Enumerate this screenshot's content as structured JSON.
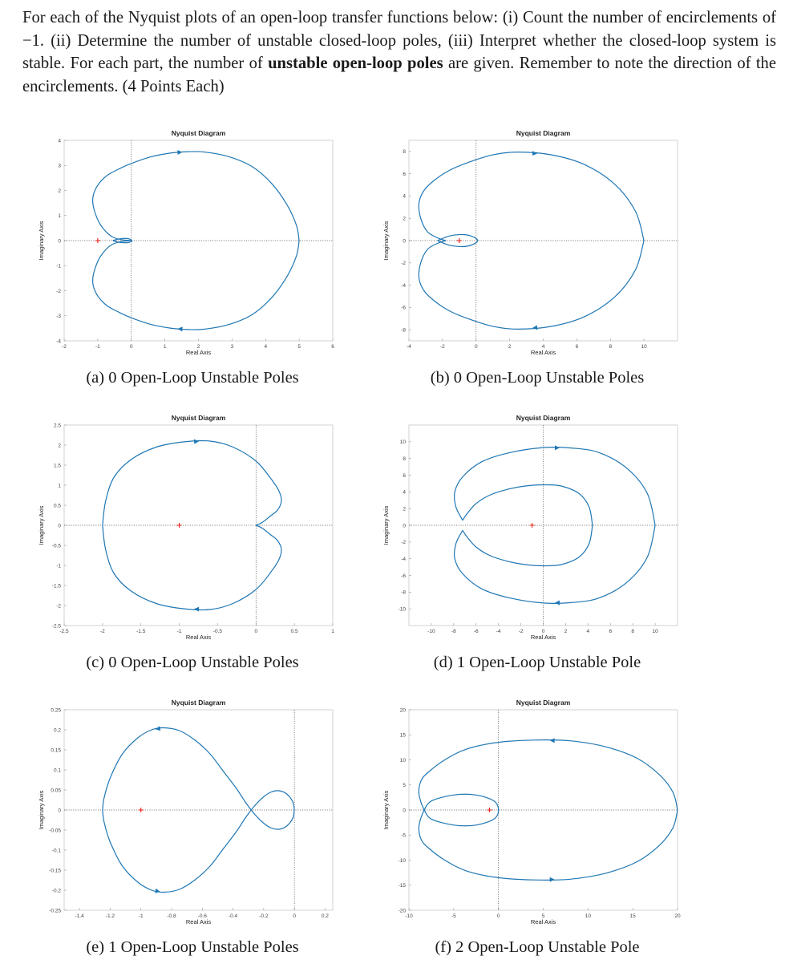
{
  "intro": {
    "part1": "For each of the Nyquist plots of an open-loop transfer functions below: (i) Count the number of encirclements of −1. (ii) Determine the number of unstable closed-loop poles, (iii) Interpret whether the closed-loop system is stable. For each part, the number of ",
    "bold": "unstable open-loop poles",
    "part2": " are given. Remember to note the direction of the encirclements. (4 Points Each)"
  },
  "colors": {
    "curve": "#1f77b4",
    "critical_point": "#e8251f",
    "axis": "#333333"
  },
  "chart_data": [
    {
      "id": "a",
      "type": "line",
      "title": "Nyquist Diagram",
      "xlabel": "Real Axis",
      "ylabel": "Imaginary Axis",
      "xlim": [
        -2,
        6
      ],
      "ylim": [
        -4,
        4
      ],
      "xticks": [
        "-2",
        "-1",
        "0",
        "1",
        "2",
        "3",
        "4",
        "5",
        "6"
      ],
      "yticks": [
        "-4",
        "-3",
        "-2",
        "-1",
        "0",
        "1",
        "2",
        "3",
        "4"
      ],
      "critical_point": [
        -1,
        0
      ],
      "x": [
        0.03,
        -0.3,
        -0.55,
        -0.75,
        -0.95,
        -1.1,
        -1.15,
        -1.1,
        -0.95,
        -0.7,
        -0.35,
        0.0,
        0.6,
        1.2,
        1.7,
        2.2,
        2.9,
        3.6,
        4.2,
        4.65,
        4.92,
        5.0
      ],
      "y": [
        0.0,
        0.04,
        0.14,
        0.35,
        0.7,
        1.2,
        1.6,
        1.95,
        2.3,
        2.62,
        2.87,
        3.08,
        3.35,
        3.5,
        3.55,
        3.53,
        3.35,
        2.95,
        2.25,
        1.4,
        0.6,
        0.0
      ],
      "loop_x": [
        -0.55,
        -0.35,
        -0.1,
        0.02,
        -0.1,
        -0.35,
        -0.55
      ],
      "loop_y": [
        0.0,
        0.07,
        0.08,
        0.0,
        -0.08,
        -0.07,
        0.0
      ],
      "arrows": [
        "upper right: counter-clockwise",
        "lower: leftward"
      ],
      "caption": "(a) 0 Open-Loop Unstable Poles"
    },
    {
      "id": "b",
      "type": "line",
      "title": "Nyquist Diagram",
      "xlabel": "Real Axis",
      "ylabel": "Imaginary Axis",
      "xlim": [
        -4,
        12
      ],
      "ylim": [
        -9,
        9
      ],
      "xticks": [
        "-4",
        "-2",
        "0",
        "2",
        "4",
        "6",
        "8",
        "10"
      ],
      "yticks": [
        "-8",
        "-6",
        "-4",
        "-2",
        "0",
        "2",
        "4",
        "6",
        "8"
      ],
      "critical_point": [
        -1,
        0
      ],
      "x": [
        -1.8,
        -2.3,
        -2.9,
        -3.3,
        -3.4,
        -3.1,
        -2.5,
        -1.6,
        -0.5,
        1.0,
        2.5,
        4.5,
        6.5,
        8.3,
        9.5,
        10.0
      ],
      "y": [
        0.0,
        0.25,
        0.8,
        2.0,
        3.4,
        4.5,
        5.4,
        6.3,
        7.0,
        7.7,
        7.95,
        7.7,
        6.8,
        5.0,
        2.6,
        0.0
      ],
      "loop_x": [
        -2.3,
        -1.5,
        -0.5,
        0.1,
        -0.5,
        -1.5,
        -2.3
      ],
      "loop_y": [
        0.0,
        0.45,
        0.5,
        0.0,
        -0.5,
        -0.45,
        0.0
      ],
      "arrows": [
        "top: rightward",
        "bottom: leftward"
      ],
      "caption": "(b) 0 Open-Loop Unstable Poles"
    },
    {
      "id": "c",
      "type": "line",
      "title": "Nyquist Diagram",
      "xlabel": "Real Axis",
      "ylabel": "Imaginary Axis",
      "xlim": [
        -2.5,
        1
      ],
      "ylim": [
        -2.5,
        2.5
      ],
      "xticks": [
        "-2.5",
        "-2",
        "-1.5",
        "-1",
        "-0.5",
        "0",
        "0.5",
        "1"
      ],
      "yticks": [
        "-2.5",
        "-2",
        "-1.5",
        "-1",
        "-0.5",
        "0",
        "0.5",
        "1",
        "1.5",
        "2",
        "2.5"
      ],
      "critical_point": [
        -1,
        0
      ],
      "x": [
        0.0,
        0.08,
        0.18,
        0.28,
        0.33,
        0.3,
        0.2,
        0.0,
        -0.3,
        -0.6,
        -0.95,
        -1.3,
        -1.62,
        -1.85,
        -1.96,
        -2.0
      ],
      "y": [
        0.0,
        0.07,
        0.22,
        0.38,
        0.6,
        0.85,
        1.15,
        1.6,
        1.95,
        2.1,
        2.08,
        1.95,
        1.65,
        1.2,
        0.6,
        0.0
      ],
      "arrows": [
        "top: rightward",
        "bottom: leftward"
      ],
      "caption": "(c) 0 Open-Loop Unstable Poles"
    },
    {
      "id": "d",
      "type": "line",
      "title": "Nyquist Diagram",
      "xlabel": "Real Axis",
      "ylabel": "Imaginary Axis",
      "xlim": [
        -12,
        12
      ],
      "ylim": [
        -12,
        12
      ],
      "xticks": [
        "-10",
        "-8",
        "-6",
        "-4",
        "-2",
        "0",
        "2",
        "4",
        "6",
        "8",
        "10"
      ],
      "yticks": [
        "-10",
        "-8",
        "-6",
        "-4",
        "-2",
        "0",
        "2",
        "4",
        "6",
        "8",
        "10"
      ],
      "critical_point": [
        -1,
        0
      ],
      "outer_x": [
        -7.2,
        -7.8,
        -7.9,
        -7.2,
        -5.5,
        -3.0,
        0.0,
        2.5,
        5.0,
        7.5,
        9.3,
        10.0
      ],
      "outer_y": [
        0.6,
        2.2,
        4.0,
        5.8,
        7.6,
        8.7,
        9.3,
        9.25,
        8.7,
        6.8,
        3.8,
        0.0
      ],
      "inner_x": [
        -7.2,
        -6.8,
        -6.0,
        -4.8,
        -3.2,
        -1.6,
        0.0,
        1.6,
        3.2,
        4.1,
        4.4
      ],
      "inner_y": [
        0.6,
        1.4,
        2.6,
        3.6,
        4.3,
        4.7,
        4.85,
        4.7,
        3.8,
        2.2,
        0.0
      ],
      "arrows": [
        "top: rightward",
        "bottom: leftward"
      ],
      "caption": "(d) 1 Open-Loop Unstable Pole"
    },
    {
      "id": "e",
      "type": "line",
      "title": "Nyquist Diagram",
      "xlabel": "Real Axis",
      "ylabel": "Imaginary Axis",
      "xlim": [
        -1.5,
        0.25
      ],
      "ylim": [
        -0.25,
        0.25
      ],
      "xticks": [
        "-1.4",
        "-1.2",
        "-1",
        "-0.8",
        "-0.6",
        "-0.4",
        "-0.2",
        "0",
        "0.2"
      ],
      "yticks": [
        "-0.25",
        "-0.2",
        "-0.15",
        "-0.1",
        "-0.05",
        "0",
        "0.05",
        "0.1",
        "0.15",
        "0.2",
        "0.25"
      ],
      "critical_point": [
        -1,
        0
      ],
      "x": [
        0.0,
        -0.01,
        -0.05,
        -0.1,
        -0.15,
        -0.2,
        -0.26,
        -0.32,
        -0.38,
        -0.46,
        -0.55,
        -0.65,
        -0.75,
        -0.85,
        -0.93,
        -1.02,
        -1.12,
        -1.2,
        -1.24,
        -1.25
      ],
      "y": [
        0.0,
        0.02,
        0.04,
        0.048,
        0.045,
        0.033,
        0.01,
        -0.02,
        -0.055,
        -0.095,
        -0.14,
        -0.175,
        -0.198,
        -0.205,
        -0.2,
        -0.18,
        -0.14,
        -0.08,
        -0.03,
        0.0
      ],
      "arrows": [
        "top: leftward",
        "bottom: rightward"
      ],
      "caption": "(e) 1 Open-Loop Unstable Poles"
    },
    {
      "id": "f",
      "type": "line",
      "title": "Nyquist Diagram",
      "xlabel": "Real Axis",
      "ylabel": "Imaginary Axis",
      "xlim": [
        -10,
        20
      ],
      "ylim": [
        -20,
        20
      ],
      "xticks": [
        "-10",
        "-5",
        "0",
        "5",
        "10",
        "15",
        "20"
      ],
      "yticks": [
        "-20",
        "-15",
        "-10",
        "-5",
        "0",
        "5",
        "10",
        "15",
        "20"
      ],
      "critical_point": [
        -1,
        0
      ],
      "x": [
        -8.3,
        -8.7,
        -8.9,
        -8.6,
        -7.8,
        -6.0,
        -3.5,
        0.0,
        4.0,
        8.0,
        12.0,
        15.5,
        18.0,
        19.5,
        20.0
      ],
      "y": [
        0.0,
        1.8,
        3.8,
        6.0,
        7.6,
        10.0,
        12.2,
        13.5,
        13.95,
        13.8,
        12.6,
        10.3,
        7.0,
        3.5,
        0.0
      ],
      "loop_x": [
        -8.3,
        -7.5,
        -5.0,
        -2.5,
        -0.5,
        0.0,
        -0.5,
        -2.5,
        -5.0,
        -7.5,
        -8.3
      ],
      "loop_y": [
        0.0,
        1.8,
        3.0,
        3.0,
        1.8,
        0.0,
        -1.8,
        -3.0,
        -3.0,
        -1.8,
        0.0
      ],
      "arrows": [
        "top: leftward",
        "bottom: rightward"
      ],
      "caption": "(f) 2 Open-Loop Unstable Pole"
    }
  ]
}
